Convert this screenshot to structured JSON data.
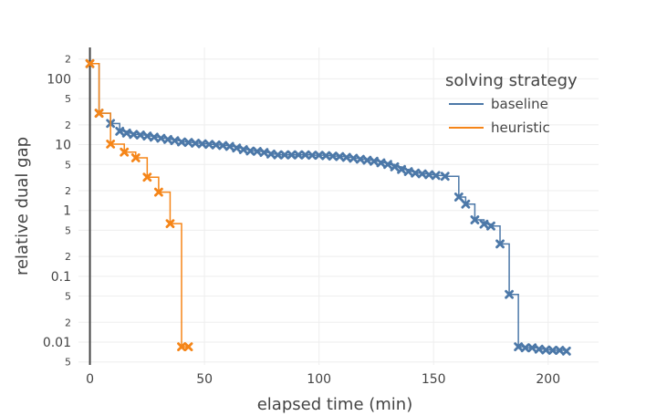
{
  "chart_data": {
    "type": "line",
    "xlabel": "elapsed time (min)",
    "ylabel": "relative dual gap",
    "xlim": [
      -5,
      222
    ],
    "ylim": [
      0.0045,
      300
    ],
    "yscale": "log",
    "x_ticks": [
      0,
      50,
      100,
      150,
      200
    ],
    "x_tick_labels": [
      "0",
      "50",
      "100",
      "150",
      "200"
    ],
    "y_major_ticks": [
      0.01,
      0.1,
      1,
      10,
      100
    ],
    "y_major_labels": [
      "0.01",
      "0.1",
      "1",
      "10",
      "100"
    ],
    "y_minor_ticks": [
      0.005,
      0.02,
      0.05,
      0.2,
      0.5,
      2,
      5,
      20,
      50,
      200
    ],
    "y_minor_labels": [
      "5",
      "2",
      "5",
      "2",
      "5",
      "2",
      "5",
      "2",
      "5",
      "2"
    ],
    "line_shape": "step",
    "grid": true,
    "legend": {
      "title": "solving strategy",
      "position": "top-right"
    },
    "series": [
      {
        "name": "baseline",
        "color": "#4c78a8",
        "marker": "x-thin",
        "x": [
          0,
          4,
          9,
          13,
          16,
          19,
          22,
          25,
          28,
          31,
          34,
          37,
          40,
          43,
          46,
          49,
          52,
          55,
          58,
          61,
          64,
          67,
          70,
          73,
          76,
          79,
          82,
          85,
          88,
          91,
          94,
          97,
          100,
          103,
          106,
          109,
          112,
          115,
          118,
          121,
          124,
          127,
          130,
          133,
          136,
          139,
          142,
          145,
          148,
          151,
          155,
          161,
          164,
          168,
          172,
          175,
          179,
          183,
          187,
          190,
          193,
          196,
          199,
          202,
          205,
          208
        ],
        "y": [
          170,
          30,
          21,
          16,
          15,
          14.3,
          14,
          13.5,
          13,
          12.5,
          12,
          11.5,
          11,
          10.8,
          10.5,
          10.3,
          10.1,
          9.9,
          9.7,
          9.4,
          8.9,
          8.4,
          8.0,
          7.9,
          7.6,
          7.2,
          7.0,
          7.0,
          7.0,
          7.0,
          7.0,
          6.9,
          6.9,
          6.8,
          6.7,
          6.6,
          6.4,
          6.2,
          6.0,
          5.8,
          5.6,
          5.3,
          5.0,
          4.6,
          4.2,
          3.9,
          3.7,
          3.6,
          3.5,
          3.4,
          3.3,
          1.6,
          1.25,
          0.72,
          0.62,
          0.58,
          0.31,
          0.053,
          0.0085,
          0.0082,
          0.0082,
          0.0078,
          0.0076,
          0.0075,
          0.0075,
          0.0073
        ]
      },
      {
        "name": "heuristic",
        "color": "#f58518",
        "marker": "x-thin",
        "x": [
          0,
          4,
          9,
          15,
          20,
          25,
          30,
          35,
          40,
          43
        ],
        "y": [
          170,
          30,
          10.2,
          7.7,
          6.3,
          3.2,
          1.9,
          0.63,
          0.0085,
          0.0085
        ]
      }
    ]
  }
}
